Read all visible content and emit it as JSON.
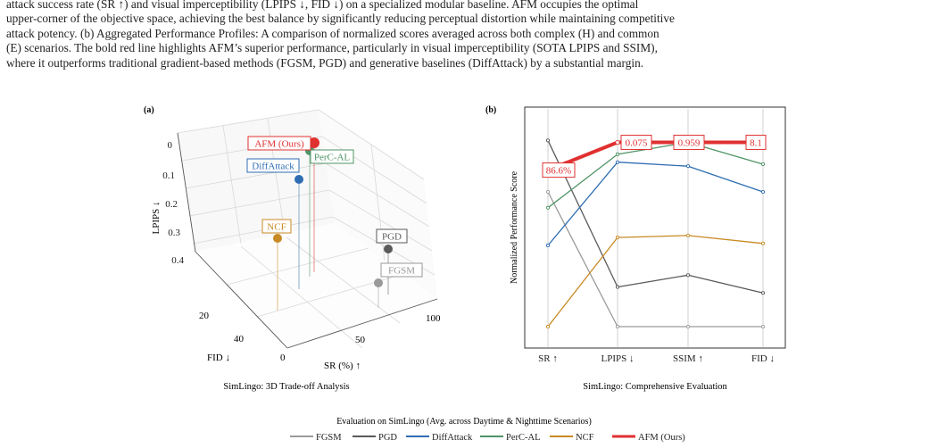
{
  "caption": {
    "lines": [
      "attack success rate (SR ↑) and visual imperceptibility (LPIPS ↓, FID ↓) on a specialized modular baseline. AFM occupies the optimal",
      "upper-corner of the objective space, achieving the best balance by significantly reducing perceptual distortion while maintaining competitive",
      "attack potency. (b) Aggregated Performance Profiles: A comparison of normalized scores averaged across both complex (H) and common",
      "(E) scenarios. The bold red line highlights AFM’s superior performance, particularly in visual imperceptibility (SOTA LPIPS and SSIM),",
      "where it outperforms traditional gradient-based methods (FGSM, PGD) and generative baselines (DiffAttack) by a substantial margin."
    ]
  },
  "colors": {
    "FGSM": "#9a9a9a",
    "PGD": "#5a5a5a",
    "DiffAttack": "#2f6db3",
    "PerC-AL": "#4f9466",
    "NCF": "#c88a24",
    "AFM (Ours)": "#e03030"
  },
  "panel_a": {
    "label": "(a)",
    "subtitle": "SimLingo: 3D Trade-off Analysis",
    "z_axis_label": "LPIPS ↓",
    "z_ticks": [
      "0",
      "0.1",
      "0.2",
      "0.3",
      "0.4"
    ],
    "x_axis_label": "FID ↓",
    "x_ticks": [
      "20",
      "40"
    ],
    "y_axis_label": "SR (%) ↑",
    "y_ticks": [
      "0",
      "50",
      "100"
    ]
  },
  "chart_data": {
    "type": "line",
    "title": "SimLingo: Comprehensive Evaluation",
    "panel_label": "(b)",
    "ylabel": "Normalized Performance Score",
    "categories": [
      "SR ↑",
      "LPIPS ↓",
      "SSIM ↑",
      "FID ↓"
    ],
    "ylim": [
      0,
      1
    ],
    "grid": true,
    "series": [
      {
        "name": "FGSM",
        "values": [
          0.68,
          0.0,
          0.0,
          0.0
        ]
      },
      {
        "name": "PGD",
        "values": [
          0.94,
          0.2,
          0.26,
          0.17
        ]
      },
      {
        "name": "DiffAttack",
        "values": [
          0.41,
          0.83,
          0.81,
          0.68
        ]
      },
      {
        "name": "PerC-AL",
        "values": [
          0.6,
          0.87,
          0.93,
          0.82
        ]
      },
      {
        "name": "NCF",
        "values": [
          0.0,
          0.45,
          0.46,
          0.42
        ]
      },
      {
        "name": "AFM (Ours)",
        "values": [
          0.79,
          0.93,
          0.93,
          0.93
        ]
      }
    ],
    "annotations": [
      "86.6%",
      "0.075",
      "0.959",
      "8.1"
    ]
  },
  "legend": {
    "title": "Evaluation on SimLingo (Avg. across Daytime & Nighttime Scenarios)",
    "entries": [
      "FGSM",
      "PGD",
      "DiffAttack",
      "PerC-AL",
      "NCF",
      "AFM (Ours)"
    ]
  }
}
